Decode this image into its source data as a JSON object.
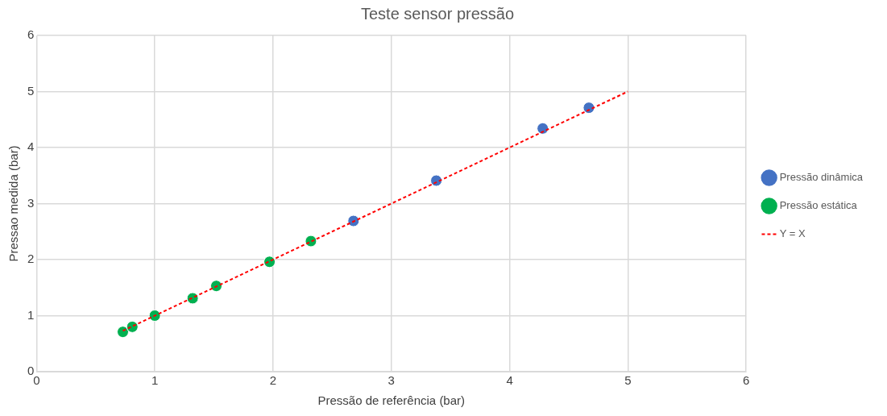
{
  "chart_data": {
    "type": "scatter",
    "title": "Teste sensor pressão",
    "xlabel": "Pressão de referência (bar)",
    "ylabel": "Pressao medida (bar)",
    "xlim": [
      0,
      6
    ],
    "xticks": [
      0,
      1,
      2,
      3,
      4,
      5,
      6
    ],
    "ylim": [
      0,
      6
    ],
    "yticks": [
      0,
      1,
      2,
      3,
      4,
      5,
      6
    ],
    "grid": true,
    "legend": "right",
    "marker": "circle",
    "series": [
      {
        "name": "Pressão dinâmica",
        "color": "#4472c4",
        "x": [
          2.68,
          3.38,
          4.28,
          4.67
        ],
        "values": [
          2.69,
          3.41,
          4.34,
          4.71
        ]
      },
      {
        "name": "Pressão estática",
        "color": "#00b050",
        "x": [
          0.73,
          0.81,
          1.0,
          1.32,
          1.52,
          1.97,
          2.32
        ],
        "values": [
          0.71,
          0.8,
          1.0,
          1.31,
          1.53,
          1.96,
          2.33
        ]
      },
      {
        "name": "Y = X",
        "type": "line",
        "color": "#ff0000",
        "line_style": "dashed",
        "marker": "none",
        "x": [
          0.73,
          5
        ],
        "values": [
          0.73,
          5
        ]
      }
    ]
  }
}
